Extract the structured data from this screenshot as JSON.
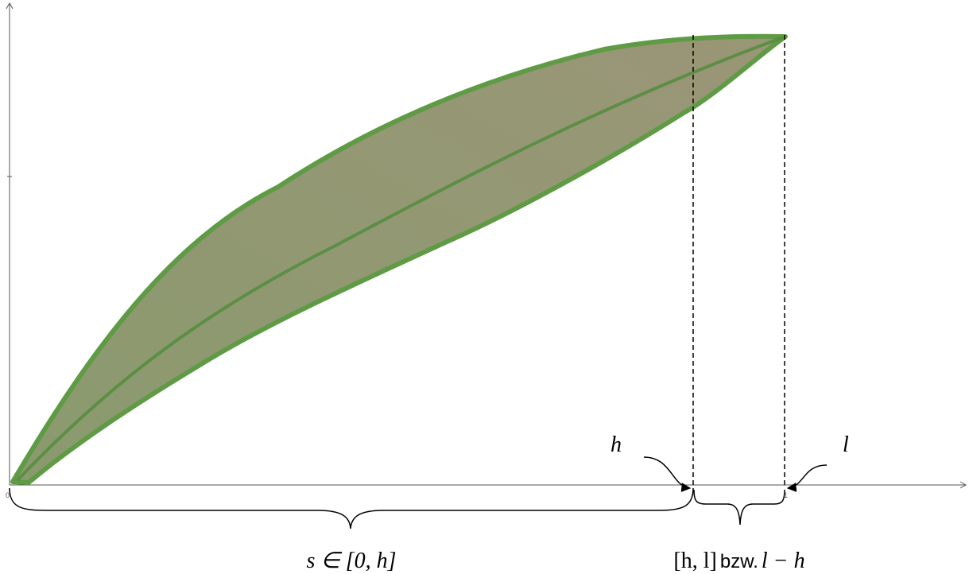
{
  "labels": {
    "h": "h",
    "l": "l",
    "zero": "0",
    "one": "1"
  },
  "captions": {
    "left": "s ∈ [0, h]",
    "right_interval": "[h, l]",
    "right_word": "bzw.",
    "right_difference": "l − h"
  }
}
